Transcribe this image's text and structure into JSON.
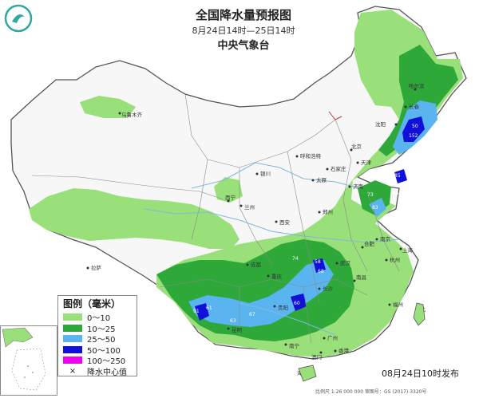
{
  "header": {
    "title": "全国降水量预报图",
    "period": "8月24日14时—25日14时",
    "issuer": "中央气象台"
  },
  "legend": {
    "title": "图例（毫米）",
    "items": [
      {
        "label": "0～10",
        "color": "#99e07a"
      },
      {
        "label": "10～25",
        "color": "#2fa83a"
      },
      {
        "label": "25～50",
        "color": "#5ab4f0"
      },
      {
        "label": "50～100",
        "color": "#1010d8"
      },
      {
        "label": "100～250",
        "color": "#f000f0"
      }
    ],
    "center_label": "降水中心值",
    "center_symbol": "×"
  },
  "footer": {
    "issue_time": "08月24日10时发布",
    "scale_note": "比例尺 1:26 000 000    审图号：GS (2017) 3320号"
  },
  "cities": [
    "乌鲁木齐",
    "呼和浩特",
    "北京",
    "天津",
    "石家庄",
    "太原",
    "银川",
    "兰州",
    "西宁",
    "西安",
    "郑州",
    "济南",
    "南京",
    "合肥",
    "上海",
    "杭州",
    "武汉",
    "长沙",
    "南昌",
    "成都",
    "重庆",
    "贵阳",
    "昆明",
    "南宁",
    "广州",
    "福州",
    "台北",
    "香港",
    "澳门",
    "海口",
    "拉萨",
    "哈尔滨",
    "长春",
    "沈阳"
  ],
  "rain_values": [
    "50",
    "152",
    "85",
    "83",
    "74",
    "58",
    "68",
    "60",
    "91",
    "61",
    "67",
    "63",
    "73",
    "85"
  ],
  "colors": {
    "land": "#f7f7f7",
    "light_rain": "#99e07a",
    "moderate_rain": "#2fa83a",
    "heavy_rain": "#5ab4f0",
    "rainstorm": "#1010d8",
    "sea": "#ffffff",
    "border": "#666666",
    "river": "#7fb8e0"
  }
}
